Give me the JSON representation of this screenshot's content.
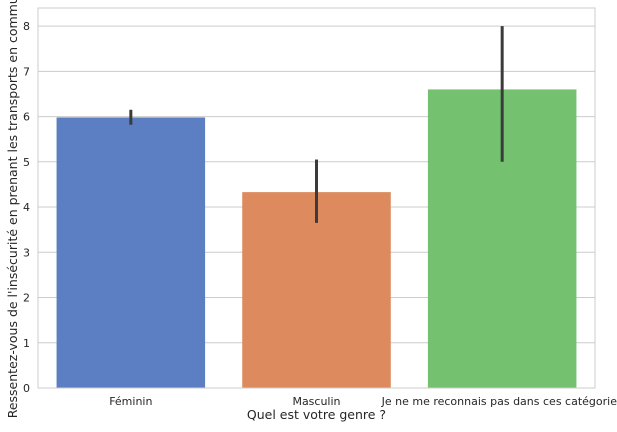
{
  "chart_data": {
    "type": "bar",
    "title": "",
    "xlabel": "Quel est votre genre ?",
    "ylabel": "Ressentez-vous de l'insécurité en prenant les transports en commun ?",
    "categories": [
      "Féminin",
      "Masculin",
      "Je ne me reconnais pas dans ces catégories"
    ],
    "values": [
      5.98,
      4.33,
      6.6
    ],
    "error_low": [
      5.82,
      3.65,
      5.0
    ],
    "error_high": [
      6.15,
      5.05,
      8.0
    ],
    "ylim": [
      0,
      8.4
    ],
    "yticks": [
      "0",
      "1",
      "2",
      "3",
      "4",
      "5",
      "6",
      "7",
      "8"
    ],
    "grid": true,
    "colors": [
      "#5b7fc2",
      "#dc8a5e",
      "#74c16f"
    ],
    "error_color": "#3b3b3b",
    "grid_color": "#cccccc",
    "spine_color": "#cccccc"
  }
}
